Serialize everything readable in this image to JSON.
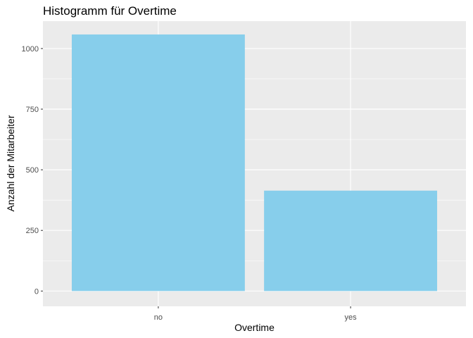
{
  "chart_data": {
    "type": "bar",
    "title": "Histogramm für Overtime",
    "xlabel": "Overtime",
    "ylabel": "Anzahl der Mitarbeiter",
    "categories": [
      "no",
      "yes"
    ],
    "values": [
      1058,
      414
    ],
    "ylim": [
      -63,
      1113
    ],
    "yticks": [
      0,
      250,
      500,
      750,
      1000
    ],
    "ytick_labels": [
      "0",
      "250",
      "500",
      "750",
      "1000"
    ],
    "grid": true,
    "legend": "none",
    "colors": {
      "bar": "#87CEEB",
      "panel": "#EBEBEB",
      "grid_major": "#FFFFFF",
      "tick_text": "#4D4D4D",
      "tick_mark": "#333333"
    }
  }
}
